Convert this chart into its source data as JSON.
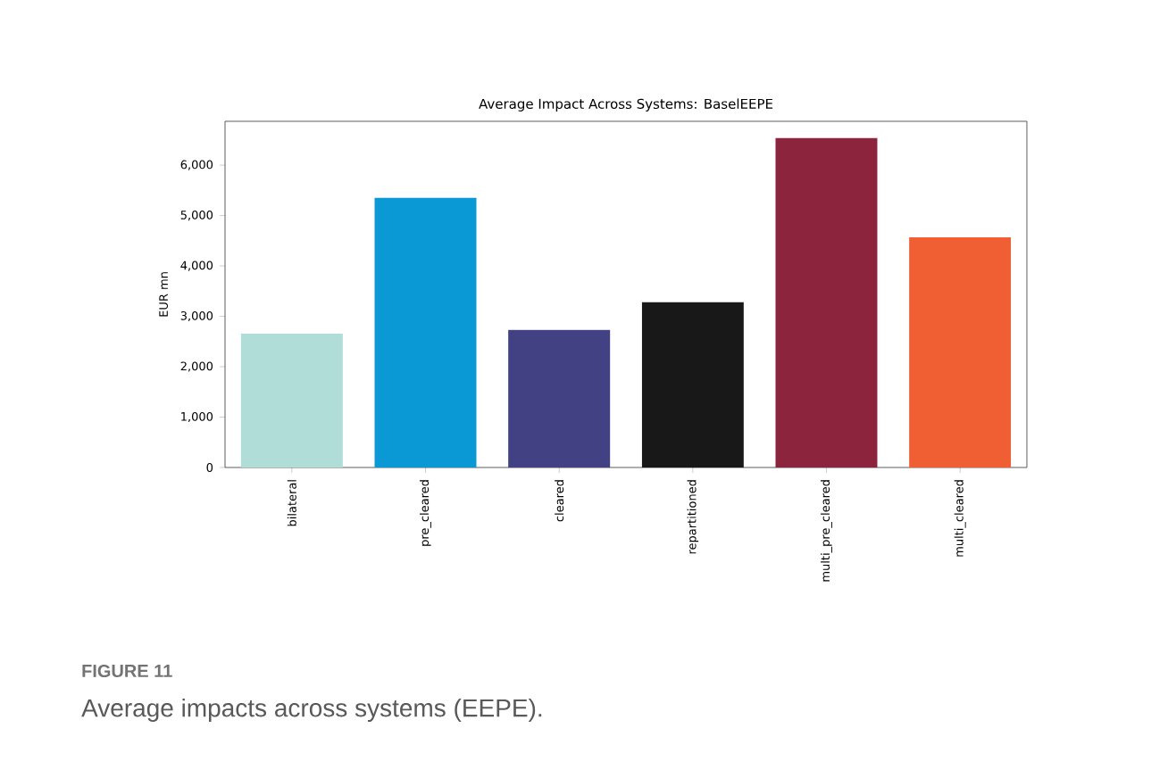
{
  "chart_data": {
    "type": "bar",
    "title": "Average Impact Across Systems: BaselEEPE",
    "ylabel": "EUR mn",
    "categories": [
      "bilateral",
      "pre_cleared",
      "cleared",
      "repartitioned",
      "multi_pre_cleared",
      "multi_cleared"
    ],
    "values": [
      2660,
      5350,
      2730,
      3280,
      6540,
      4570
    ],
    "colors": [
      "#b0ddd8",
      "#0a99d4",
      "#414184",
      "#181818",
      "#8c243d",
      "#f05f33"
    ],
    "ylim": [
      0,
      6870
    ],
    "yticks": [
      0,
      {
        "value": 1000,
        "label": "1,000"
      },
      {
        "value": 2000,
        "label": "2,000"
      },
      {
        "value": 3000,
        "label": "3,000"
      },
      {
        "value": 4000,
        "label": "4,000"
      },
      {
        "value": 5000,
        "label": "5,000"
      },
      {
        "value": 6000,
        "label": "6,000"
      }
    ],
    "annotations": [
      "FIGURE 11",
      "Average impacts across systems (EEPE)."
    ]
  }
}
